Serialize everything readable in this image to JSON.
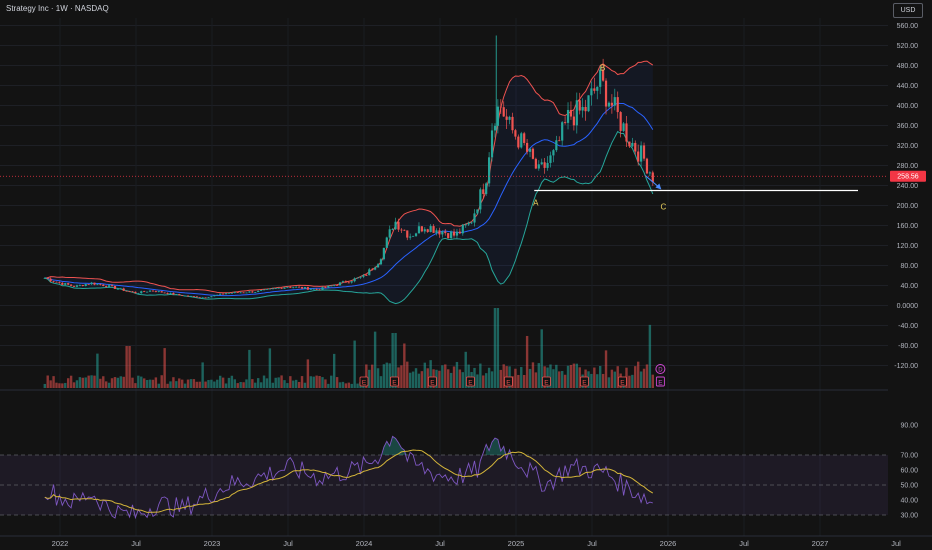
{
  "header": {
    "title": "Strategy Inc · 1W · NASDAQ",
    "currency": "USD"
  },
  "colors": {
    "background": "#131313",
    "up": "#26a69a",
    "down": "#ef5350",
    "bb_upper": "#ef5350",
    "bb_basis": "#2962ff",
    "bb_lower": "#26a69a",
    "rsi": "#7e57c2",
    "rsi_ma": "#d4b53a",
    "label": "#f0d660",
    "price_tag": "#f23645"
  },
  "chart_data": {
    "type": "line",
    "x_ticks": [
      "2022",
      "Jul",
      "2023",
      "Jul",
      "2024",
      "Jul",
      "2025",
      "Jul",
      "2026",
      "Jul",
      "2027",
      "Jul"
    ],
    "price_ticks": [
      "560.00",
      "520.00",
      "480.00",
      "440.00",
      "400.00",
      "360.00",
      "320.00",
      "280.00",
      "240.00",
      "200.00",
      "160.00",
      "120.00",
      "80.00",
      "40.00",
      "0.0000",
      "-40.00",
      "-80.00",
      "-120.00"
    ],
    "price_ylim": [
      -120,
      560
    ],
    "last_price": "258.56",
    "support_level": 230,
    "labels": [
      "A",
      "B",
      "C"
    ],
    "rsi_ticks": [
      "90.00",
      "70.00",
      "60.00",
      "50.00",
      "40.00",
      "30.00"
    ],
    "rsi_ylim": [
      30,
      90
    ],
    "rsi_bands": [
      70,
      50,
      30
    ],
    "event_marker": "E",
    "dividend_marker": "D",
    "price_keypoints": [
      [
        2021.9,
        55
      ],
      [
        2022.0,
        45
      ],
      [
        2022.1,
        38
      ],
      [
        2022.2,
        45
      ],
      [
        2022.3,
        40
      ],
      [
        2022.4,
        32
      ],
      [
        2022.5,
        25
      ],
      [
        2022.6,
        30
      ],
      [
        2022.7,
        25
      ],
      [
        2022.8,
        20
      ],
      [
        2022.95,
        16
      ],
      [
        2023.1,
        25
      ],
      [
        2023.3,
        28
      ],
      [
        2023.5,
        38
      ],
      [
        2023.7,
        32
      ],
      [
        2023.85,
        45
      ],
      [
        2024.0,
        58
      ],
      [
        2024.1,
        90
      ],
      [
        2024.2,
        170
      ],
      [
        2024.3,
        140
      ],
      [
        2024.4,
        160
      ],
      [
        2024.5,
        150
      ],
      [
        2024.6,
        140
      ],
      [
        2024.7,
        165
      ],
      [
        2024.8,
        250
      ],
      [
        2024.85,
        380
      ],
      [
        2024.9,
        400
      ],
      [
        2024.95,
        360
      ],
      [
        2025.05,
        320
      ],
      [
        2025.15,
        265
      ],
      [
        2025.25,
        300
      ],
      [
        2025.35,
        380
      ],
      [
        2025.45,
        390
      ],
      [
        2025.55,
        450
      ],
      [
        2025.65,
        390
      ],
      [
        2025.75,
        330
      ],
      [
        2025.85,
        290
      ],
      [
        2025.9,
        258
      ]
    ],
    "rsi_keypoints": [
      [
        2021.9,
        48
      ],
      [
        2022.0,
        42
      ],
      [
        2022.1,
        38
      ],
      [
        2022.2,
        45
      ],
      [
        2022.35,
        32
      ],
      [
        2022.5,
        30
      ],
      [
        2022.65,
        38
      ],
      [
        2022.8,
        34
      ],
      [
        2022.95,
        42
      ],
      [
        2023.1,
        50
      ],
      [
        2023.3,
        55
      ],
      [
        2023.5,
        62
      ],
      [
        2023.7,
        55
      ],
      [
        2023.85,
        58
      ],
      [
        2024.0,
        62
      ],
      [
        2024.1,
        70
      ],
      [
        2024.2,
        86
      ],
      [
        2024.3,
        65
      ],
      [
        2024.45,
        58
      ],
      [
        2024.6,
        55
      ],
      [
        2024.75,
        60
      ],
      [
        2024.85,
        82
      ],
      [
        2024.95,
        72
      ],
      [
        2025.1,
        58
      ],
      [
        2025.2,
        50
      ],
      [
        2025.35,
        62
      ],
      [
        2025.5,
        60
      ],
      [
        2025.6,
        58
      ],
      [
        2025.7,
        50
      ],
      [
        2025.8,
        45
      ],
      [
        2025.9,
        38
      ]
    ]
  }
}
